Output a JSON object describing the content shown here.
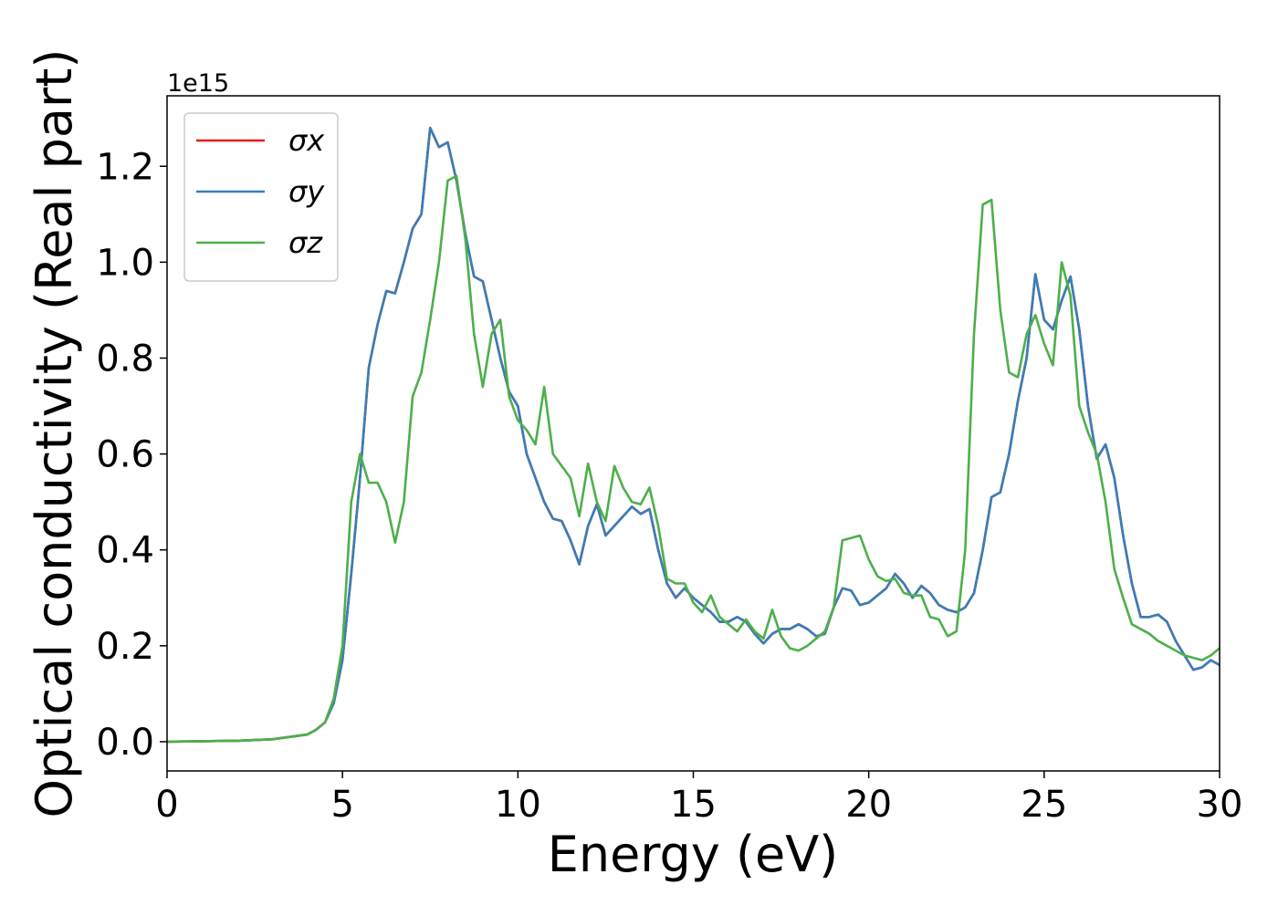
{
  "chart_data": {
    "type": "line",
    "x_label": "Energy (eV)",
    "y_label": "Optical conductivity (Real part)",
    "offset_text": "1e15",
    "xlim": [
      0,
      30
    ],
    "xticks": [
      0,
      5,
      10,
      15,
      20,
      25,
      30
    ],
    "ylim": [
      -0.061,
      1.347
    ],
    "yticks": [
      {
        "value": 0,
        "label": "0.0"
      },
      0.2,
      0.4,
      0.6,
      0.8,
      {
        "value": 1,
        "label": "1.0"
      },
      1.2
    ],
    "legend": "upper left",
    "x": [
      0,
      1,
      2,
      3,
      4,
      4.25,
      4.5,
      4.75,
      5,
      5.25,
      5.5,
      5.75,
      6,
      6.25,
      6.5,
      6.75,
      7,
      7.25,
      7.5,
      7.75,
      8,
      8.25,
      8.5,
      8.75,
      9,
      9.25,
      9.5,
      9.75,
      10,
      10.25,
      10.5,
      10.75,
      11,
      11.25,
      11.5,
      11.75,
      12,
      12.25,
      12.5,
      12.75,
      13,
      13.25,
      13.5,
      13.75,
      14,
      14.25,
      14.5,
      14.75,
      15,
      15.25,
      15.5,
      15.75,
      16,
      16.25,
      16.5,
      16.75,
      17,
      17.25,
      17.5,
      17.75,
      18,
      18.25,
      18.5,
      18.75,
      19,
      19.25,
      19.5,
      19.75,
      20,
      20.25,
      20.5,
      20.75,
      21,
      21.25,
      21.5,
      21.75,
      22,
      22.25,
      22.5,
      22.75,
      23,
      23.25,
      23.5,
      23.75,
      24,
      24.25,
      24.5,
      24.75,
      25,
      25.25,
      25.5,
      25.75,
      26,
      26.25,
      26.5,
      26.75,
      27,
      27.25,
      27.5,
      27.75,
      28,
      28.25,
      28.5,
      28.75,
      29,
      29.25,
      29.5,
      29.75,
      30
    ],
    "series": [
      {
        "name": "σx",
        "color": "#e41a1c",
        "values": [
          0,
          0.001,
          0.002,
          0.005,
          0.015,
          0.025,
          0.04,
          0.08,
          0.17,
          0.35,
          0.55,
          0.78,
          0.87,
          0.94,
          0.935,
          1.0,
          1.07,
          1.1,
          1.28,
          1.24,
          1.25,
          1.17,
          1.06,
          0.97,
          0.96,
          0.88,
          0.8,
          0.73,
          0.7,
          0.6,
          0.55,
          0.5,
          0.465,
          0.46,
          0.42,
          0.37,
          0.45,
          0.495,
          0.43,
          0.45,
          0.47,
          0.49,
          0.475,
          0.485,
          0.4,
          0.33,
          0.3,
          0.32,
          0.3,
          0.285,
          0.27,
          0.25,
          0.25,
          0.26,
          0.25,
          0.225,
          0.205,
          0.225,
          0.235,
          0.235,
          0.245,
          0.235,
          0.22,
          0.225,
          0.28,
          0.32,
          0.315,
          0.285,
          0.29,
          0.305,
          0.32,
          0.35,
          0.33,
          0.3,
          0.325,
          0.31,
          0.285,
          0.275,
          0.27,
          0.28,
          0.31,
          0.4,
          0.51,
          0.52,
          0.6,
          0.71,
          0.8,
          0.975,
          0.88,
          0.86,
          0.92,
          0.97,
          0.86,
          0.7,
          0.59,
          0.62,
          0.55,
          0.43,
          0.33,
          0.26,
          0.26,
          0.265,
          0.25,
          0.21,
          0.18,
          0.15,
          0.155,
          0.17,
          0.16
        ]
      },
      {
        "name": "σy",
        "color": "#377eb8",
        "values": [
          0,
          0.001,
          0.002,
          0.005,
          0.015,
          0.025,
          0.04,
          0.08,
          0.17,
          0.35,
          0.55,
          0.78,
          0.87,
          0.94,
          0.935,
          1.0,
          1.07,
          1.1,
          1.28,
          1.24,
          1.25,
          1.17,
          1.06,
          0.97,
          0.96,
          0.88,
          0.8,
          0.73,
          0.7,
          0.6,
          0.55,
          0.5,
          0.465,
          0.46,
          0.42,
          0.37,
          0.45,
          0.495,
          0.43,
          0.45,
          0.47,
          0.49,
          0.475,
          0.485,
          0.4,
          0.33,
          0.3,
          0.32,
          0.3,
          0.285,
          0.27,
          0.25,
          0.25,
          0.26,
          0.25,
          0.225,
          0.205,
          0.225,
          0.235,
          0.235,
          0.245,
          0.235,
          0.22,
          0.225,
          0.28,
          0.32,
          0.315,
          0.285,
          0.29,
          0.305,
          0.32,
          0.35,
          0.33,
          0.3,
          0.325,
          0.31,
          0.285,
          0.275,
          0.27,
          0.28,
          0.31,
          0.4,
          0.51,
          0.52,
          0.6,
          0.71,
          0.8,
          0.975,
          0.88,
          0.86,
          0.92,
          0.97,
          0.86,
          0.7,
          0.59,
          0.62,
          0.55,
          0.43,
          0.33,
          0.26,
          0.26,
          0.265,
          0.25,
          0.21,
          0.18,
          0.15,
          0.155,
          0.17,
          0.16
        ]
      },
      {
        "name": "σz",
        "color": "#4daf4a",
        "values": [
          0,
          0.001,
          0.002,
          0.005,
          0.015,
          0.025,
          0.04,
          0.09,
          0.2,
          0.5,
          0.6,
          0.54,
          0.54,
          0.5,
          0.415,
          0.5,
          0.72,
          0.77,
          0.88,
          1.0,
          1.17,
          1.18,
          1.05,
          0.85,
          0.74,
          0.85,
          0.88,
          0.72,
          0.67,
          0.65,
          0.62,
          0.74,
          0.6,
          0.575,
          0.55,
          0.47,
          0.58,
          0.5,
          0.46,
          0.575,
          0.53,
          0.5,
          0.495,
          0.53,
          0.45,
          0.34,
          0.33,
          0.33,
          0.29,
          0.27,
          0.305,
          0.26,
          0.245,
          0.23,
          0.255,
          0.23,
          0.215,
          0.275,
          0.22,
          0.195,
          0.19,
          0.2,
          0.215,
          0.23,
          0.28,
          0.42,
          0.425,
          0.43,
          0.38,
          0.345,
          0.335,
          0.34,
          0.31,
          0.305,
          0.305,
          0.26,
          0.255,
          0.22,
          0.23,
          0.4,
          0.85,
          1.12,
          1.13,
          0.9,
          0.77,
          0.76,
          0.85,
          0.89,
          0.83,
          0.785,
          1.0,
          0.93,
          0.7,
          0.645,
          0.6,
          0.5,
          0.36,
          0.3,
          0.245,
          0.235,
          0.225,
          0.21,
          0.2,
          0.19,
          0.18,
          0.175,
          0.17,
          0.18,
          0.195
        ]
      }
    ]
  }
}
